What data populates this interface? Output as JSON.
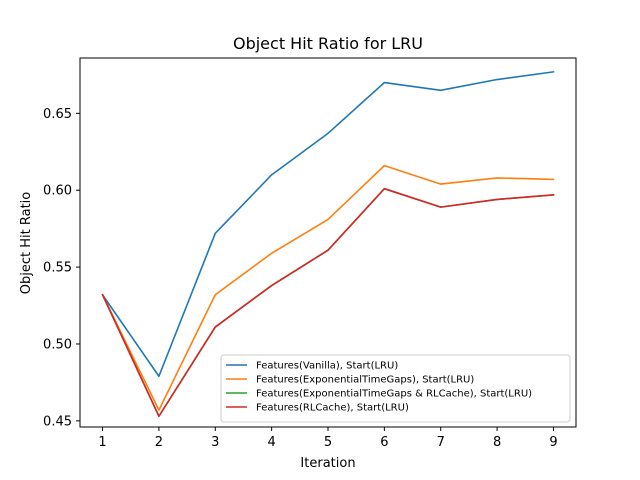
{
  "chart_data": {
    "type": "line",
    "title": "Object Hit Ratio for LRU",
    "xlabel": "Iteration",
    "ylabel": "Object Hit Ratio",
    "x": [
      1,
      2,
      3,
      4,
      5,
      6,
      7,
      8,
      9
    ],
    "xticks": [
      "1",
      "2",
      "3",
      "4",
      "5",
      "6",
      "7",
      "8",
      "9"
    ],
    "yticks": [
      0.45,
      0.5,
      0.55,
      0.6,
      0.65
    ],
    "ytick_labels": [
      "0.45",
      "0.50",
      "0.55",
      "0.60",
      "0.65"
    ],
    "xlim": [
      0.6,
      9.4
    ],
    "ylim": [
      0.446,
      0.686
    ],
    "grid": false,
    "legend_position": "lower-right",
    "series": [
      {
        "name": "Features(Vanilla), Start(LRU)",
        "color": "#1f77b4",
        "values": [
          0.532,
          0.479,
          0.572,
          0.61,
          0.637,
          0.67,
          0.665,
          0.672,
          0.677
        ]
      },
      {
        "name": "Features(ExponentialTimeGaps), Start(LRU)",
        "color": "#ff7f0e",
        "values": [
          0.532,
          0.457,
          0.532,
          0.559,
          0.581,
          0.616,
          0.604,
          0.608,
          0.607
        ]
      },
      {
        "name": "Features(ExponentialTimeGaps & RLCache), Start(LRU)",
        "color": "#2ca02c",
        "values": [
          0.532,
          0.453,
          0.511,
          0.538,
          0.561,
          0.601,
          0.589,
          0.594,
          0.597
        ]
      },
      {
        "name": "Features(RLCache), Start(LRU)",
        "color": "#d62728",
        "values": [
          0.532,
          0.453,
          0.511,
          0.538,
          0.561,
          0.601,
          0.589,
          0.594,
          0.597
        ]
      }
    ]
  }
}
